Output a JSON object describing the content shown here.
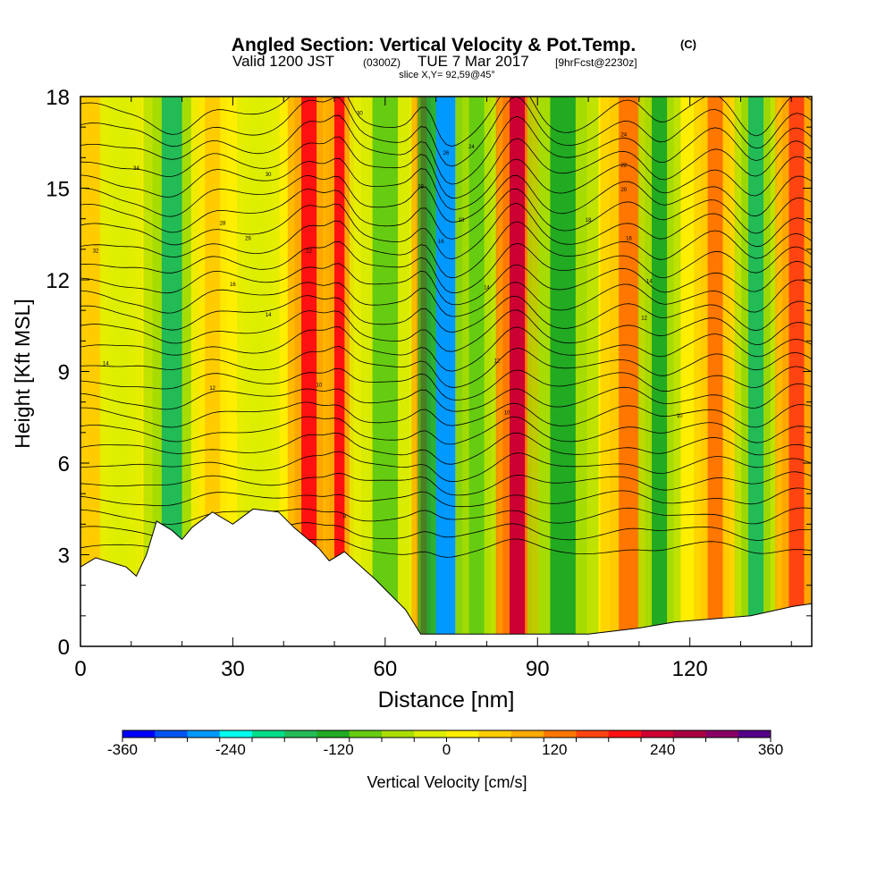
{
  "chart_data": {
    "type": "heatmap",
    "title": "Angled Section: Vertical Velocity & Pot.Temp.",
    "title_suffix": "(C)",
    "subtitle_parts": [
      "Valid 1200 JST",
      "(0300Z)",
      "TUE 7 Mar 2017",
      "[9hrFcst@2230z]"
    ],
    "slice_label": "slice X,Y= 92,59@45°",
    "xlabel": "Distance [nm]",
    "ylabel": "Height [Kft MSL]",
    "xlim": [
      0,
      144
    ],
    "ylim": [
      0,
      18
    ],
    "x_ticks": [
      "0",
      "30",
      "60",
      "90",
      "120"
    ],
    "x_tick_values": [
      0,
      30,
      60,
      90,
      120
    ],
    "y_ticks": [
      "0",
      "3",
      "6",
      "9",
      "12",
      "15",
      "18"
    ],
    "y_tick_values": [
      0,
      3,
      6,
      9,
      12,
      15,
      18
    ],
    "colorbar": {
      "label": "Vertical Velocity [cm/s]",
      "tick_labels": [
        "-360",
        "-240",
        "-120",
        "0",
        "120",
        "240",
        "360"
      ],
      "tick_values": [
        -360,
        -240,
        -120,
        0,
        120,
        240,
        360
      ],
      "min": -360,
      "max": 360,
      "colors": [
        "#0000ff",
        "#0055f2",
        "#0099ff",
        "#00ffee",
        "#00dd88",
        "#22bb55",
        "#22aa22",
        "#66cc11",
        "#aadd00",
        "#ddee00",
        "#ffee00",
        "#ffcc00",
        "#ffaa00",
        "#ff7700",
        "#ff4411",
        "#ff1111",
        "#cc0033",
        "#aa0044",
        "#880066",
        "#550088"
      ]
    },
    "velocity_bands": [
      {
        "x": 2,
        "w": 4,
        "v": 40
      },
      {
        "x": 8,
        "w": 3,
        "v": -30
      },
      {
        "x": 18,
        "w": 4,
        "v": -150
      },
      {
        "x": 26,
        "w": 3,
        "v": 60
      },
      {
        "x": 35,
        "w": 3,
        "v": -30
      },
      {
        "x": 45,
        "w": 3,
        "v": 190
      },
      {
        "x": 51,
        "w": 2,
        "v": 200
      },
      {
        "x": 60,
        "w": 5,
        "v": -80
      },
      {
        "x": 68,
        "w": 2,
        "v": 230
      },
      {
        "x": 72,
        "w": 4,
        "v": -270
      },
      {
        "x": 78,
        "w": 3,
        "v": -90
      },
      {
        "x": 86,
        "w": 3,
        "v": 240
      },
      {
        "x": 95,
        "w": 5,
        "v": -130
      },
      {
        "x": 108,
        "w": 4,
        "v": 110
      },
      {
        "x": 114,
        "w": 3,
        "v": -140
      },
      {
        "x": 125,
        "w": 3,
        "v": 120
      },
      {
        "x": 133,
        "w": 3,
        "v": -160
      },
      {
        "x": 141,
        "w": 3,
        "v": 160
      }
    ],
    "terrain": [
      [
        0,
        2.6
      ],
      [
        3,
        2.9
      ],
      [
        9,
        2.6
      ],
      [
        11,
        2.3
      ],
      [
        13,
        3.0
      ],
      [
        15,
        4.1
      ],
      [
        18,
        3.8
      ],
      [
        20,
        3.5
      ],
      [
        22,
        3.9
      ],
      [
        26,
        4.4
      ],
      [
        30,
        4.0
      ],
      [
        34,
        4.5
      ],
      [
        39,
        4.4
      ],
      [
        42,
        3.9
      ],
      [
        47,
        3.2
      ],
      [
        49,
        2.8
      ],
      [
        52,
        3.1
      ],
      [
        56,
        2.5
      ],
      [
        58,
        2.2
      ],
      [
        61,
        1.7
      ],
      [
        64,
        1.2
      ],
      [
        67,
        0.4
      ],
      [
        80,
        0.4
      ],
      [
        100,
        0.4
      ],
      [
        110,
        0.6
      ],
      [
        117,
        0.8
      ],
      [
        132,
        1.0
      ],
      [
        140,
        1.3
      ],
      [
        144,
        1.4
      ]
    ],
    "contour_labels": [
      {
        "x": 11,
        "y": 15.6,
        "text": "34"
      },
      {
        "x": 3,
        "y": 12.9,
        "text": "32"
      },
      {
        "x": 37,
        "y": 15.4,
        "text": "30"
      },
      {
        "x": 28,
        "y": 13.8,
        "text": "28"
      },
      {
        "x": 33,
        "y": 13.3,
        "text": "26"
      },
      {
        "x": 45,
        "y": 12.9,
        "text": "22"
      },
      {
        "x": 55,
        "y": 17.4,
        "text": "30"
      },
      {
        "x": 67,
        "y": 15.0,
        "text": "28"
      },
      {
        "x": 72,
        "y": 16.1,
        "text": "26"
      },
      {
        "x": 77,
        "y": 16.3,
        "text": "24"
      },
      {
        "x": 75,
        "y": 13.9,
        "text": "18"
      },
      {
        "x": 71,
        "y": 13.2,
        "text": "16"
      },
      {
        "x": 30,
        "y": 11.8,
        "text": "16"
      },
      {
        "x": 37,
        "y": 10.8,
        "text": "14"
      },
      {
        "x": 5,
        "y": 9.2,
        "text": "14"
      },
      {
        "x": 26,
        "y": 8.4,
        "text": "12"
      },
      {
        "x": 47,
        "y": 8.5,
        "text": "10"
      },
      {
        "x": 80,
        "y": 11.7,
        "text": "14"
      },
      {
        "x": 82,
        "y": 9.3,
        "text": "12"
      },
      {
        "x": 84,
        "y": 7.6,
        "text": "10"
      },
      {
        "x": 107,
        "y": 16.7,
        "text": "24"
      },
      {
        "x": 107,
        "y": 15.7,
        "text": "22"
      },
      {
        "x": 107,
        "y": 14.9,
        "text": "20"
      },
      {
        "x": 100,
        "y": 13.9,
        "text": "18"
      },
      {
        "x": 108,
        "y": 13.3,
        "text": "16"
      },
      {
        "x": 112,
        "y": 11.9,
        "text": "14"
      },
      {
        "x": 111,
        "y": 10.7,
        "text": "12"
      },
      {
        "x": 118,
        "y": 7.5,
        "text": "10"
      },
      {
        "x": 52,
        "y": 4.2,
        "text": "8"
      }
    ]
  }
}
